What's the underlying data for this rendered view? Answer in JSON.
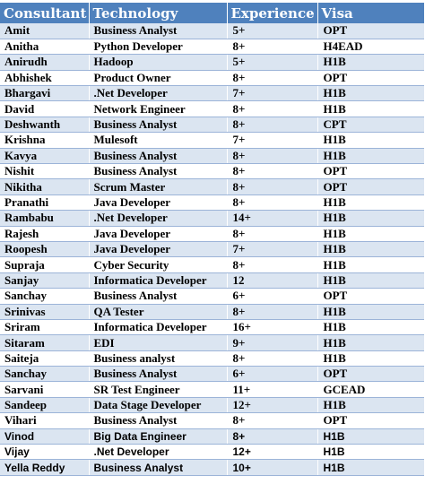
{
  "table": {
    "headers": [
      "Consultant",
      "Technology",
      "Experience",
      "Visa"
    ],
    "rows": [
      [
        "Amit",
        "Business Analyst",
        "5+",
        "OPT"
      ],
      [
        "Anitha",
        "Python Developer",
        "8+",
        "H4EAD"
      ],
      [
        "Anirudh",
        "Hadoop",
        "5+",
        "H1B"
      ],
      [
        "Abhishek",
        "Product Owner",
        "8+",
        "OPT"
      ],
      [
        "Bhargavi",
        ".Net Developer",
        "7+",
        "H1B"
      ],
      [
        "David",
        "Network Engineer",
        "8+",
        "H1B"
      ],
      [
        "Deshwanth",
        "Business Analyst",
        "8+",
        "CPT"
      ],
      [
        "Krishna",
        "Mulesoft",
        "7+",
        "H1B"
      ],
      [
        "Kavya",
        "Business Analyst",
        "8+",
        "H1B"
      ],
      [
        "Nishit",
        "Business Analyst",
        "8+",
        "OPT"
      ],
      [
        "Nikitha",
        "Scrum Master",
        "8+",
        "OPT"
      ],
      [
        "Pranathi",
        "Java Developer",
        "8+",
        "H1B"
      ],
      [
        "Rambabu",
        ".Net Developer",
        "14+",
        "H1B"
      ],
      [
        "Rajesh",
        "Java Developer",
        "8+",
        "H1B"
      ],
      [
        "Roopesh",
        "Java Developer",
        "7+",
        "H1B"
      ],
      [
        "Supraja",
        "Cyber Security",
        "8+",
        "H1B"
      ],
      [
        "Sanjay",
        "Informatica Developer",
        "12",
        "H1B"
      ],
      [
        "Sanchay",
        "Business Analyst",
        "6+",
        "OPT"
      ],
      [
        "Srinivas",
        "QA Tester",
        "8+",
        "H1B"
      ],
      [
        "Sriram",
        "Informatica Developer",
        "16+",
        "H1B"
      ],
      [
        "Sitaram",
        "EDI",
        "9+",
        "H1B"
      ],
      [
        "Saiteja",
        "Business analyst",
        "8+",
        "H1B"
      ],
      [
        "Sanchay",
        "Business Analyst",
        "6+",
        "OPT"
      ],
      [
        "Sarvani",
        "SR Test Engineer",
        "11+",
        "GCEAD"
      ],
      [
        "Sandeep",
        "Data Stage Developer",
        "12+",
        "H1B"
      ],
      [
        "Vihari",
        "Business Analyst",
        "8+",
        "OPT"
      ],
      [
        "Vinod",
        "Big Data Engineer",
        "8+",
        "H1B"
      ],
      [
        "Vijay",
        ".Net Developer",
        "12+",
        "H1B"
      ],
      [
        "Yella Reddy",
        "Business Analyst",
        "10+",
        "H1B"
      ]
    ]
  },
  "colors": {
    "header_bg": "#4f81bd",
    "header_text": "#ffffff",
    "band_row": "#dbe5f1",
    "plain_row": "#ffffff",
    "row_border": "#9cb4d8"
  }
}
